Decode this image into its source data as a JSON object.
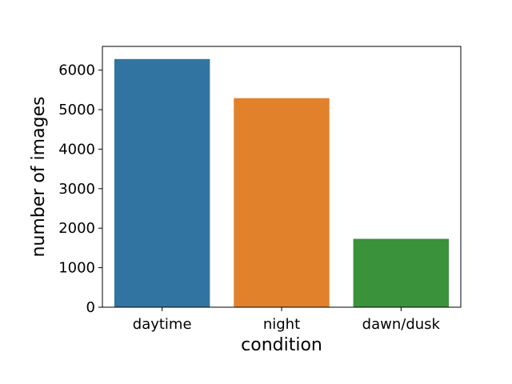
{
  "chart_data": {
    "type": "bar",
    "title": "",
    "xlabel": "condition",
    "ylabel": "number of images",
    "categories": [
      "daytime",
      "night",
      "dawn/dusk"
    ],
    "values": [
      6280,
      5290,
      1730
    ],
    "colors": [
      "#3274a1",
      "#e1812c",
      "#3a923a"
    ],
    "ylim": [
      0,
      6600
    ],
    "yticks": [
      0,
      1000,
      2000,
      3000,
      4000,
      5000,
      6000
    ],
    "ytick_labels": [
      "0",
      "1000",
      "2000",
      "3000",
      "4000",
      "5000",
      "6000"
    ],
    "grid": false,
    "legend": null
  }
}
